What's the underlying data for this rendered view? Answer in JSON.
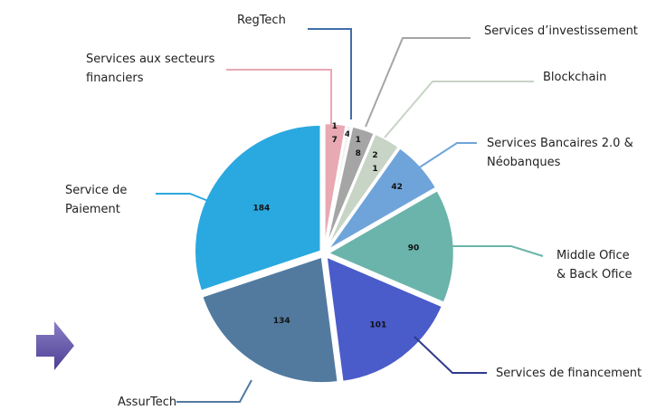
{
  "chart_data": {
    "type": "pie",
    "categories": [
      "Services aux secteurs financiers",
      "RegTech",
      "Services d’investissement",
      "Blockchain",
      "Services Bancaires 2.0 & Néobanques",
      "Middle Ofice & Back Ofice",
      "Services de financement",
      "AssurTech",
      "Service de Paiement"
    ],
    "values": [
      17,
      4,
      18,
      21,
      42,
      90,
      101,
      134,
      184
    ],
    "colors": [
      "#e8a9b3",
      "#f2f2f2",
      "#a5a5a5",
      "#c8d4c6",
      "#6fa4da",
      "#6bb4ab",
      "#4a5bca",
      "#527a9f",
      "#2aa8e0"
    ]
  }
}
